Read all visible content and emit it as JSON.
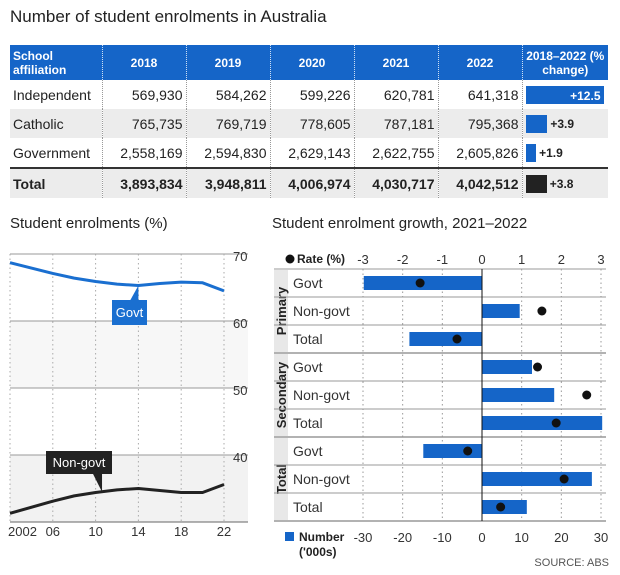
{
  "title": "Number of student enrolments in Australia",
  "table": {
    "headers": [
      "School affiliation",
      "2018",
      "2019",
      "2020",
      "2021",
      "2022",
      "2018–2022 (% change)"
    ],
    "rows": [
      {
        "label": "Independent",
        "values": [
          "569,930",
          "584,262",
          "599,226",
          "620,781",
          "641,318"
        ],
        "change": "+12.5",
        "change_value": 12.5,
        "color": "#1565c8"
      },
      {
        "label": "Catholic",
        "values": [
          "765,735",
          "769,719",
          "778,605",
          "787,181",
          "795,368"
        ],
        "change": "+3.9",
        "change_value": 3.9,
        "color": "#1565c8"
      },
      {
        "label": "Government",
        "values": [
          "2,558,169",
          "2,594,830",
          "2,629,143",
          "2,622,755",
          "2,605,826"
        ],
        "change": "+1.9",
        "change_value": 1.9,
        "color": "#1565c8"
      },
      {
        "label": "Total",
        "values": [
          "3,893,834",
          "3,948,811",
          "4,006,974",
          "4,030,717",
          "4,042,512"
        ],
        "change": "+3.8",
        "change_value": 3.8,
        "color": "#222222"
      }
    ]
  },
  "chart_data": [
    {
      "type": "line",
      "title": "Student enrolments (%)",
      "x_tick_labels": [
        "2002",
        "06",
        "10",
        "14",
        "18",
        "22"
      ],
      "y_tick_labels": [
        "70",
        "60",
        "50",
        "40"
      ],
      "ylim": [
        30,
        72
      ],
      "xlim": [
        2002,
        2022
      ],
      "grid": true,
      "series": [
        {
          "name": "Govt",
          "color": "#1a6fd0",
          "x": [
            2002,
            2006,
            2008,
            2010,
            2012,
            2014,
            2016,
            2018,
            2020,
            2022
          ],
          "y": [
            68.7,
            67.1,
            66.4,
            65.9,
            65.5,
            65.3,
            65.6,
            65.8,
            65.7,
            64.5
          ]
        },
        {
          "name": "Non-govt",
          "color": "#222222",
          "x": [
            2002,
            2006,
            2008,
            2010,
            2012,
            2014,
            2016,
            2018,
            2020,
            2022
          ],
          "y": [
            31.3,
            33.1,
            33.9,
            34.4,
            34.8,
            35.0,
            34.7,
            34.4,
            34.4,
            35.6
          ]
        }
      ]
    },
    {
      "type": "bar",
      "title": "Student enrolment growth, 2021–2022",
      "orientation": "horizontal",
      "groups": [
        "Primary",
        "Secondary",
        "Total"
      ],
      "categories": [
        "Govt",
        "Non-govt",
        "Total"
      ],
      "series": [
        {
          "name": "Number ('000s)",
          "color": "#1565c8",
          "xlim": [
            -30,
            30
          ],
          "tick_labels": [
            "-30",
            "-20",
            "-10",
            "0",
            "10",
            "20",
            "30"
          ],
          "values": [
            [
              -29.8,
              9.5,
              -18.3
            ],
            [
              12.6,
              18.2,
              30.3
            ],
            [
              -14.8,
              27.7,
              11.3
            ]
          ]
        },
        {
          "name": "Rate (%)",
          "color": "#111111",
          "xlim": [
            -3,
            3
          ],
          "tick_labels": [
            "-3",
            "-2",
            "-1",
            "0",
            "1",
            "2",
            "3"
          ],
          "values": [
            [
              -1.56,
              1.51,
              -0.63
            ],
            [
              1.4,
              2.64,
              1.87
            ],
            [
              -0.36,
              2.07,
              0.47
            ]
          ]
        }
      ],
      "legend": {
        "rate": "Rate (%)",
        "number_line1": "Number",
        "number_line2": "('000s)"
      }
    }
  ],
  "source": "SOURCE: ABS"
}
